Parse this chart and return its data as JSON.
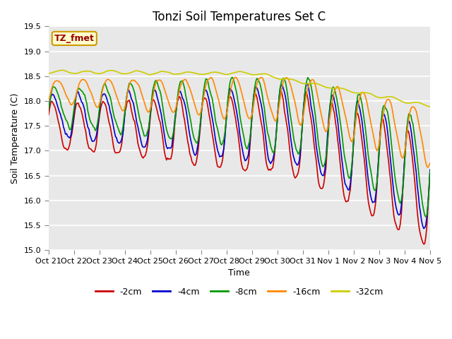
{
  "title": "Tonzi Soil Temperatures Set C",
  "xlabel": "Time",
  "ylabel": "Soil Temperature (C)",
  "ylim": [
    15.0,
    19.5
  ],
  "plot_bg_color": "#e8e8e8",
  "annotation_text": "TZ_fmet",
  "annotation_bg": "#ffffcc",
  "annotation_border": "#cc9900",
  "annotation_text_color": "#990000",
  "legend_labels": [
    "-2cm",
    "-4cm",
    "-8cm",
    "-16cm",
    "-32cm"
  ],
  "line_colors": [
    "#cc0000",
    "#0000cc",
    "#009900",
    "#ff8800",
    "#cccc00"
  ],
  "yticks": [
    15.0,
    15.5,
    16.0,
    16.5,
    17.0,
    17.5,
    18.0,
    18.5,
    19.0,
    19.5
  ],
  "xtick_labels": [
    "Oct 21",
    "Oct 22",
    "Oct 23",
    "Oct 24",
    "Oct 25",
    "Oct 26",
    "Oct 27",
    "Oct 28",
    "Oct 29",
    "Oct 30",
    "Oct 31",
    "Nov 1",
    "Nov 2",
    "Nov 3",
    "Nov 4",
    "Nov 5"
  ],
  "title_fontsize": 12,
  "axis_label_fontsize": 9,
  "tick_fontsize": 8
}
